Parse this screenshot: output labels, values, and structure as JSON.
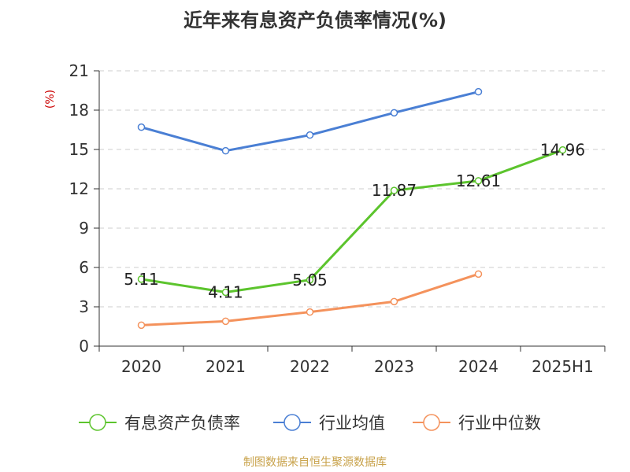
{
  "chart_data": {
    "type": "line",
    "title": "近年来有息资产负债率情况(%)",
    "ylabel": "(%)",
    "xlabel": "",
    "categories": [
      "2020",
      "2021",
      "2022",
      "2023",
      "2024",
      "2025H1"
    ],
    "ylim": [
      0,
      21
    ],
    "yticks": [
      0,
      3,
      6,
      9,
      12,
      15,
      18,
      21
    ],
    "grid": true,
    "legend_position": "bottom",
    "series": [
      {
        "name": "有息资产负债率",
        "color": "#5cc42d",
        "values": [
          5.11,
          4.11,
          5.05,
          11.87,
          12.61,
          14.96
        ],
        "labels": [
          "5.11",
          "4.11",
          "5.05",
          "11.87",
          "12.61",
          "14.96"
        ]
      },
      {
        "name": "行业均值",
        "color": "#4a7fd4",
        "values": [
          16.7,
          14.9,
          16.1,
          17.8,
          19.4,
          null
        ]
      },
      {
        "name": "行业中位数",
        "color": "#f4925c",
        "values": [
          1.6,
          1.9,
          2.6,
          3.4,
          5.5,
          null
        ]
      }
    ],
    "source": "制图数据来自恒生聚源数据库"
  }
}
